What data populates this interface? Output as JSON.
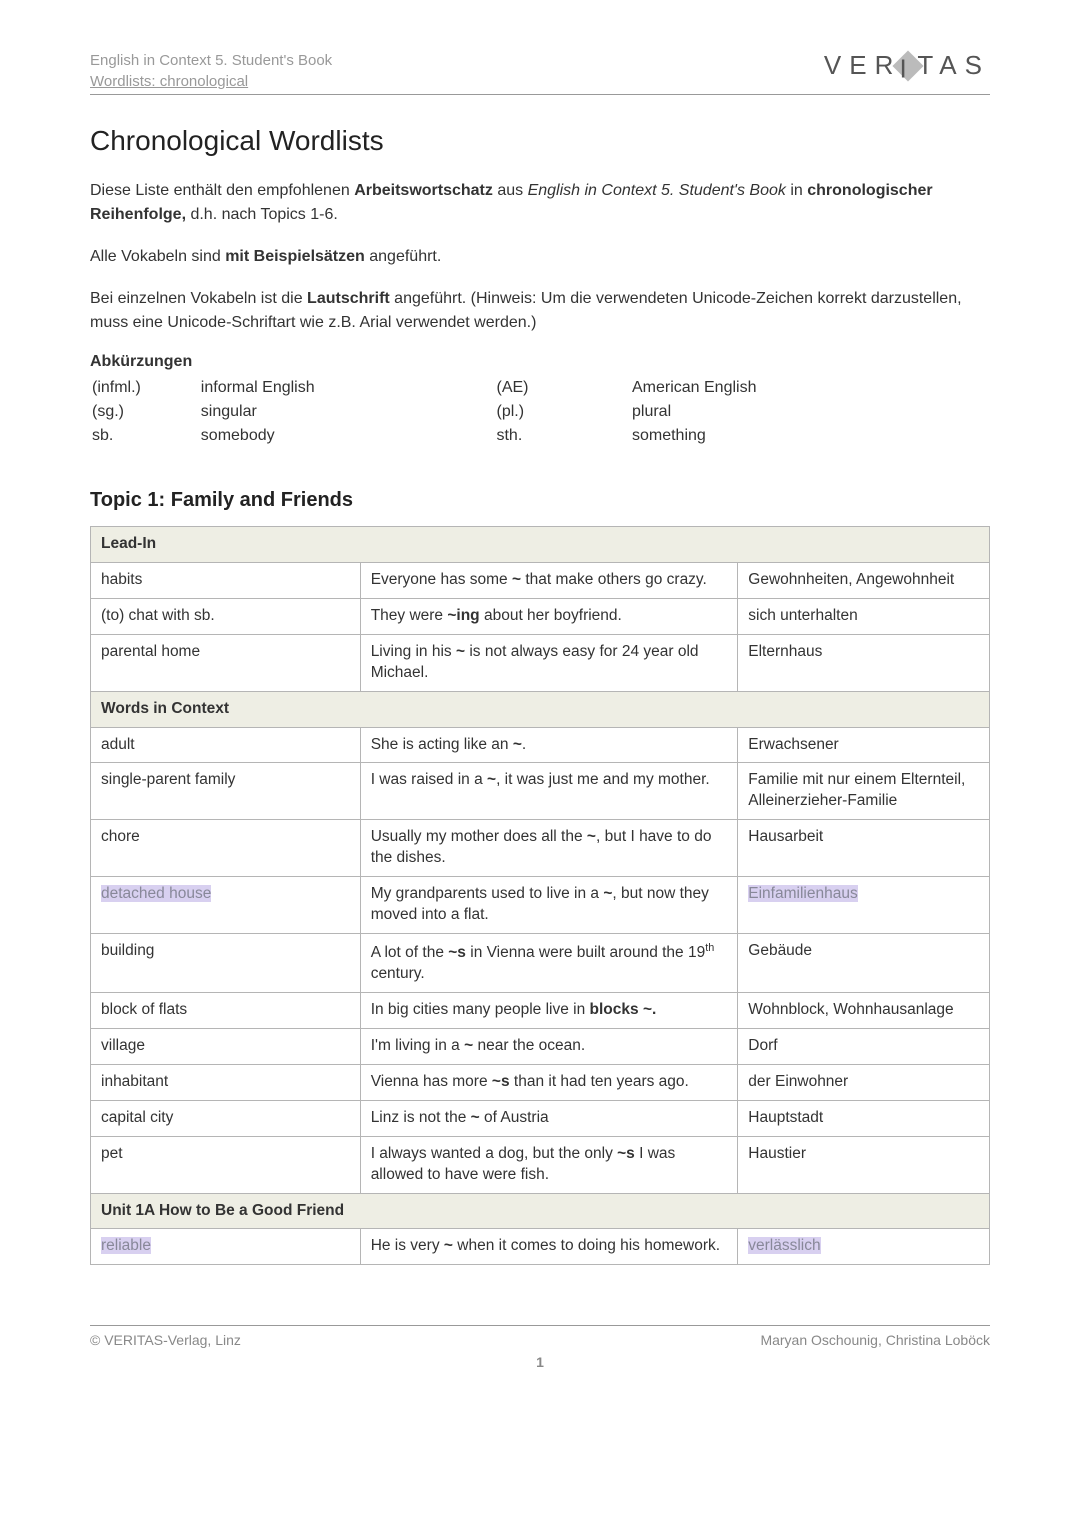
{
  "header": {
    "line1": "English in Context 5. Student's Book",
    "line2": "Wordlists: chronological",
    "logo_text_left": "VER",
    "logo_diamond_char": "I",
    "logo_text_right": "TAS"
  },
  "title": "Chronological Wordlists",
  "intro": {
    "p1_pre": "Diese Liste enthält den empfohlenen ",
    "p1_b1": "Arbeitswortschatz",
    "p1_mid": " aus ",
    "p1_i1": "English in Context 5. Student's Book",
    "p1_mid2": " in ",
    "p1_b2": "chronologischer Reihenfolge,",
    "p1_end": " d.h. nach Topics 1-6.",
    "p2_pre": "Alle Vokabeln sind ",
    "p2_b": "mit Beispielsätzen",
    "p2_end": " angeführt.",
    "p3_pre": "Bei einzelnen Vokabeln ist die ",
    "p3_b": "Lautschrift",
    "p3_end": " angeführt. (Hinweis: Um die verwendeten Unicode-Zeichen korrekt darzustellen, muss eine Unicode-Schriftart wie z.B. Arial verwendet werden.)"
  },
  "abbr": {
    "title": "Abkürzungen",
    "rows": [
      {
        "a": "(infml.)",
        "b": "informal English",
        "c": "(AE)",
        "d": "American English"
      },
      {
        "a": "(sg.)",
        "b": "singular",
        "c": "(pl.)",
        "d": "plural"
      },
      {
        "a": "sb.",
        "b": "somebody",
        "c": "sth.",
        "d": "something"
      }
    ]
  },
  "topic_title": "Topic 1: Family and Friends",
  "sections": [
    {
      "header": "Lead-In",
      "rows": [
        {
          "word": "habits",
          "example_pre": "Everyone has some ",
          "tilde": "~",
          "example_post": " that make others go crazy.",
          "trans": "Gewohnheiten, Angewohnheit"
        },
        {
          "word": "(to) chat with sb.",
          "example_pre": "They were ",
          "tilde": "~ing",
          "example_post": " about her boyfriend.",
          "trans": "sich unterhalten"
        },
        {
          "word": "parental home",
          "example_pre": "Living in his ",
          "tilde": "~",
          "example_post": " is not always easy for 24 year old Michael.",
          "trans": "Elternhaus"
        }
      ]
    },
    {
      "header": "Words in Context",
      "rows": [
        {
          "word": "adult",
          "example_pre": "She is acting like an ",
          "tilde": "~",
          "example_post": ".",
          "trans": "Erwachsener"
        },
        {
          "word": "single-parent family",
          "example_pre": "I was raised in a ",
          "tilde": "~",
          "example_post": ", it was just me and my mother.",
          "trans": "Familie mit nur einem Elternteil, Alleinerzieher-Familie"
        },
        {
          "word": "chore",
          "example_pre": "Usually my mother does all the ",
          "tilde": "~",
          "example_post": ", but I have to do the dishes.",
          "trans": "Hausarbeit"
        },
        {
          "word": "detached house",
          "word_hl": true,
          "example_pre": "My grandparents used to live in a ",
          "tilde": "~",
          "example_post": ", but now they moved into a flat.",
          "trans": "Einfamilienhaus",
          "trans_hl": true
        },
        {
          "word": "building",
          "example_pre": "A lot of the ",
          "tilde": "~s",
          "example_post": " in Vienna were built around the 19",
          "sup": "th",
          "example_post2": " century.",
          "trans": "Gebäude"
        },
        {
          "word": "block of flats",
          "example_pre": "In big cities many people live in ",
          "tilde": "blocks ~.",
          "example_post": "",
          "trans": "Wohnblock, Wohnhausanlage"
        },
        {
          "word": "village",
          "example_pre": "I'm living in a ",
          "tilde": "~",
          "example_post": " near the ocean.",
          "trans": "Dorf"
        },
        {
          "word": "inhabitant",
          "example_pre": "Vienna has more ",
          "tilde": "~s",
          "example_post": " than it had ten years ago.",
          "trans": "der Einwohner"
        },
        {
          "word": "capital city",
          "example_pre": "Linz is not the ",
          "tilde": "~",
          "example_post": " of Austria",
          "trans": "Hauptstadt"
        },
        {
          "word": "pet",
          "example_pre": "I always wanted a dog, but the only ",
          "tilde": "~s",
          "example_post": " I was allowed to have were fish.",
          "trans": "Haustier"
        }
      ]
    },
    {
      "header": "Unit 1A How to Be a Good Friend",
      "rows": [
        {
          "word": "reliable",
          "word_hl": true,
          "example_pre": "He is very ",
          "tilde": "~",
          "example_post": " when it comes to doing his homework.",
          "trans": "verlässlich",
          "trans_hl": true
        }
      ]
    }
  ],
  "footer": {
    "left": "© VERITAS-Verlag, Linz",
    "right": "Maryan Oschounig, Christina Loböck",
    "page": "1"
  }
}
